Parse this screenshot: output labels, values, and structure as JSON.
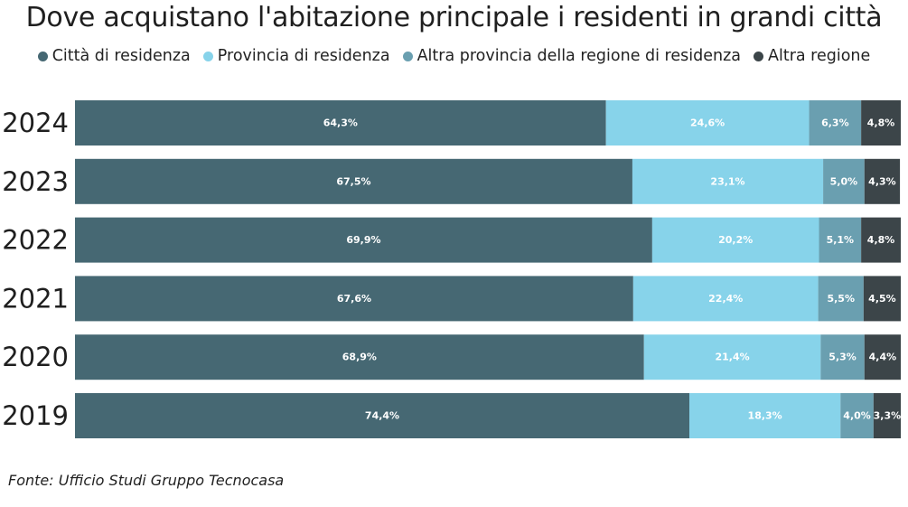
{
  "chart_data": {
    "type": "bar",
    "orientation": "horizontal",
    "stacked": true,
    "title": "Dove acquistano l'abitazione principale i residenti in grandi città",
    "categories": [
      "2024",
      "2023",
      "2022",
      "2021",
      "2020",
      "2019"
    ],
    "series": [
      {
        "name": "Città di residenza",
        "color": "#466873",
        "values": [
          64.3,
          67.5,
          69.9,
          67.6,
          68.9,
          74.4
        ],
        "labels": [
          "64,3%",
          "67,5%",
          "69,9%",
          "67,6%",
          "68,9%",
          "74,4%"
        ]
      },
      {
        "name": "Provincia di residenza",
        "color": "#87d3ea",
        "values": [
          24.6,
          23.1,
          20.2,
          22.4,
          21.4,
          18.3
        ],
        "labels": [
          "24,6%",
          "23,1%",
          "20,2%",
          "22,4%",
          "21,4%",
          "18,3%"
        ]
      },
      {
        "name": "Altra provincia della regione di residenza",
        "color": "#6a9fb0",
        "values": [
          6.3,
          5.0,
          5.1,
          5.5,
          5.3,
          4.0
        ],
        "labels": [
          "6,3%",
          "5,0%",
          "5,1%",
          "5,5%",
          "5,3%",
          "4,0%"
        ]
      },
      {
        "name": "Altra regione",
        "color": "#3c4549",
        "values": [
          4.8,
          4.3,
          4.8,
          4.5,
          4.4,
          3.3
        ],
        "labels": [
          "4,8%",
          "4,3%",
          "4,8%",
          "4,5%",
          "4,4%",
          "3,3%"
        ]
      }
    ],
    "xlim": [
      0,
      100
    ],
    "grid": false,
    "legend_position": "top"
  },
  "source": "Fonte: Ufficio Studi Gruppo Tecnocasa"
}
